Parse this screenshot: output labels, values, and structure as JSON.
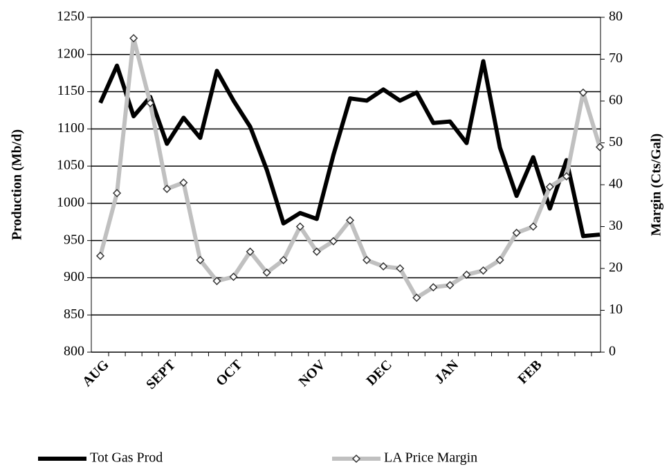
{
  "chart_data": {
    "type": "line",
    "categories": [
      "AUG",
      null,
      null,
      null,
      "SEPT",
      null,
      null,
      null,
      "OCT",
      null,
      null,
      null,
      null,
      "NOV",
      null,
      null,
      null,
      "DEC",
      null,
      null,
      null,
      "JAN",
      null,
      null,
      null,
      null,
      "FEB",
      null,
      null,
      null,
      null
    ],
    "ylabel": "Production (Mb/d)",
    "y2label": "Margin (Cts/Gal)",
    "ylim": [
      800,
      1250
    ],
    "yticks": [
      800,
      850,
      900,
      950,
      1000,
      1050,
      1100,
      1150,
      1200,
      1250
    ],
    "y2lim": [
      0,
      80
    ],
    "y2ticks": [
      0,
      10,
      20,
      30,
      40,
      50,
      60,
      70,
      80
    ],
    "grid": true,
    "legend": "bottom",
    "series": [
      {
        "name": "Tot Gas Prod",
        "color": "#000000",
        "marker": false,
        "values": [
          1135,
          1185,
          1117,
          1143,
          1080,
          1115,
          1088,
          1178,
          1138,
          1103,
          1045,
          973,
          987,
          979,
          1065,
          1141,
          1138,
          1153,
          1138,
          1149,
          1108,
          1110,
          1081,
          1191,
          1075,
          1010,
          1062,
          993,
          1058,
          956,
          958
        ]
      },
      {
        "name": "LA Price Margin",
        "color": "#c0c0c0",
        "marker": true,
        "axis": "y2",
        "values": [
          23,
          38,
          75,
          59.5,
          39,
          40.5,
          22,
          17,
          18,
          24,
          19,
          22,
          30,
          24,
          26.5,
          31.5,
          22,
          20.5,
          20,
          13,
          15.5,
          16,
          18.5,
          19.5,
          22,
          28.5,
          30,
          39.5,
          42,
          62,
          49
        ]
      }
    ]
  }
}
